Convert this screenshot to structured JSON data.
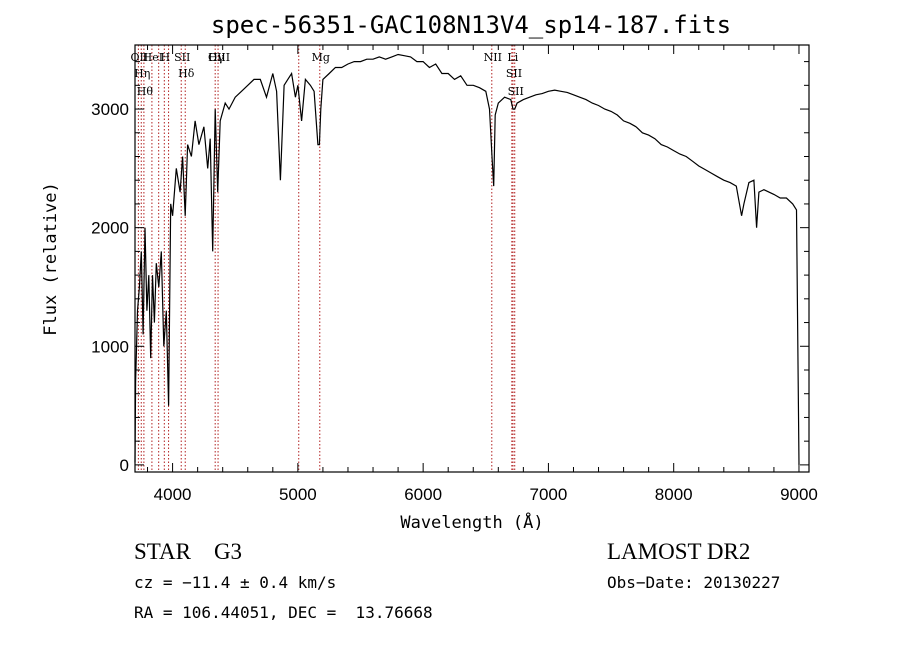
{
  "chart_data": {
    "type": "line",
    "title": "spec-56351-GAC108N13V4_sp14-187.fits",
    "xlabel": "Wavelength (Å)",
    "ylabel": "Flux (relative)",
    "xlim": [
      3700,
      9080
    ],
    "ylim": [
      -60,
      3540
    ],
    "x_ticks": [
      4000,
      5000,
      6000,
      7000,
      8000,
      9000
    ],
    "y_ticks": [
      0,
      1000,
      2000,
      3000
    ],
    "grid": false,
    "line_color": "#000000",
    "marker_color": "#b22222",
    "series": [
      {
        "x": [
          3700,
          3705,
          3720,
          3735,
          3750,
          3765,
          3780,
          3795,
          3810,
          3825,
          3840,
          3855,
          3870,
          3890,
          3910,
          3930,
          3950,
          3968,
          3985,
          4000,
          4030,
          4060,
          4080,
          4101,
          4120,
          4150,
          4180,
          4210,
          4250,
          4280,
          4300,
          4320,
          4340,
          4360,
          4380,
          4420,
          4450,
          4500,
          4550,
          4600,
          4650,
          4700,
          4750,
          4800,
          4830,
          4861,
          4890,
          4920,
          4950,
          4980,
          5000,
          5030,
          5060,
          5100,
          5130,
          5160,
          5172,
          5183,
          5200,
          5250,
          5300,
          5350,
          5400,
          5450,
          5500,
          5550,
          5600,
          5650,
          5700,
          5750,
          5800,
          5850,
          5900,
          5950,
          6000,
          6050,
          6100,
          6150,
          6200,
          6250,
          6300,
          6350,
          6400,
          6450,
          6500,
          6530,
          6550,
          6563,
          6575,
          6600,
          6650,
          6700,
          6717,
          6731,
          6750,
          6800,
          6850,
          6900,
          6950,
          7000,
          7050,
          7100,
          7150,
          7200,
          7250,
          7300,
          7350,
          7400,
          7450,
          7500,
          7550,
          7600,
          7650,
          7700,
          7750,
          7800,
          7850,
          7900,
          7950,
          8000,
          8050,
          8100,
          8150,
          8200,
          8250,
          8300,
          8350,
          8400,
          8450,
          8500,
          8542,
          8560,
          8600,
          8640,
          8662,
          8680,
          8720,
          8760,
          8800,
          8850,
          8900,
          8950,
          8980,
          9000
        ],
        "y": [
          20,
          700,
          1300,
          1500,
          1800,
          1100,
          2000,
          1300,
          1600,
          900,
          1600,
          1200,
          1700,
          1500,
          1800,
          1000,
          1300,
          500,
          2200,
          2100,
          2500,
          2300,
          2600,
          2100,
          2700,
          2600,
          2900,
          2700,
          2850,
          2500,
          2750,
          1800,
          3000,
          2300,
          2900,
          3050,
          3000,
          3100,
          3150,
          3200,
          3250,
          3250,
          3100,
          3300,
          3150,
          2400,
          3200,
          3250,
          3300,
          3100,
          3200,
          2900,
          3250,
          3200,
          3150,
          2700,
          2700,
          3000,
          3250,
          3300,
          3350,
          3350,
          3380,
          3400,
          3400,
          3420,
          3420,
          3440,
          3420,
          3440,
          3460,
          3450,
          3440,
          3400,
          3400,
          3350,
          3380,
          3300,
          3300,
          3250,
          3280,
          3200,
          3200,
          3180,
          3150,
          3000,
          2600,
          2350,
          2950,
          3050,
          3100,
          3080,
          3000,
          3000,
          3050,
          3080,
          3100,
          3120,
          3130,
          3150,
          3160,
          3150,
          3140,
          3120,
          3100,
          3080,
          3050,
          3030,
          3000,
          2980,
          2950,
          2900,
          2880,
          2850,
          2800,
          2780,
          2750,
          2700,
          2680,
          2650,
          2620,
          2600,
          2560,
          2520,
          2490,
          2460,
          2430,
          2400,
          2380,
          2350,
          2100,
          2200,
          2380,
          2400,
          2000,
          2300,
          2320,
          2300,
          2280,
          2250,
          2250,
          2200,
          2150,
          0
        ]
      }
    ],
    "lines": [
      {
        "x": 3727,
        "label": "OII"
      },
      {
        "x": 3750,
        "label": "Hη"
      },
      {
        "x": 3771,
        "label": "Hθ"
      },
      {
        "x": 3835,
        "label": "HeI"
      },
      {
        "x": 3889,
        "label": ""
      },
      {
        "x": 3934,
        "label": "H"
      },
      {
        "x": 3968,
        "label": ""
      },
      {
        "x": 4069,
        "label": "SII"
      },
      {
        "x": 4101,
        "label": "Hδ"
      },
      {
        "x": 4340,
        "label": "Hγ"
      },
      {
        "x": 4363,
        "label": "OIII"
      },
      {
        "x": 5007,
        "label": ""
      },
      {
        "x": 5175,
        "label": "Mg"
      },
      {
        "x": 6548,
        "label": "NII"
      },
      {
        "x": 6708,
        "label": "Li"
      },
      {
        "x": 6717,
        "label": "SII"
      },
      {
        "x": 6731,
        "label": "SII"
      }
    ]
  },
  "info": {
    "class": "STAR    G3",
    "survey": "LAMOST DR2",
    "cz": "cz = −11.4 ± 0.4 km/s",
    "obs_date": "Obs−Date: 20130227",
    "radec": "RA = 106.44051, DEC =  13.76668"
  }
}
